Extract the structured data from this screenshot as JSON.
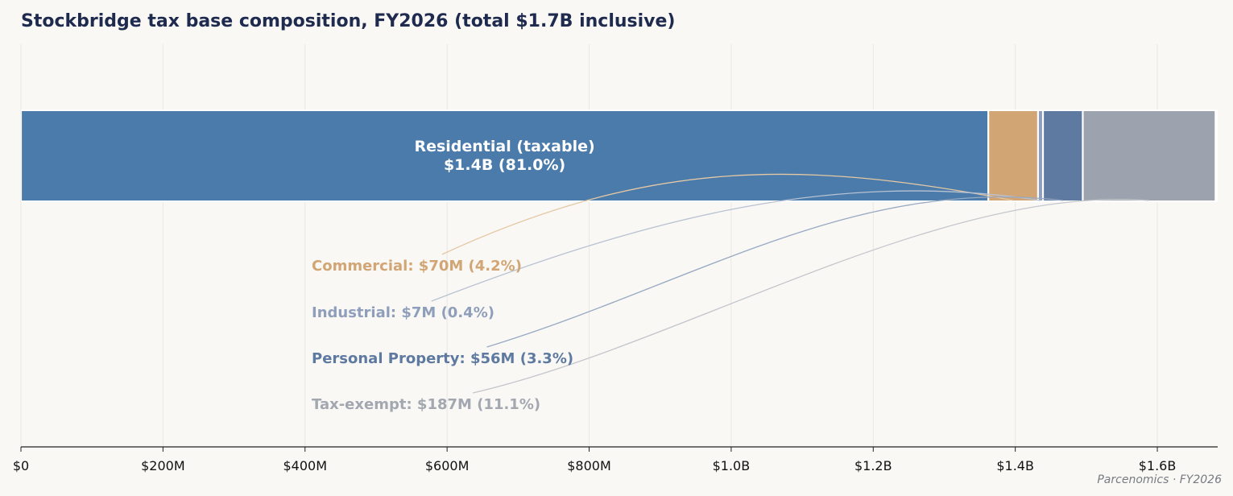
{
  "chart_data": {
    "type": "bar",
    "orientation": "horizontal-stacked",
    "title": "Stockbridge tax base composition, FY2026 (total $1.7B inclusive)",
    "xlim": [
      0,
      1685
    ],
    "x_unit": "$M",
    "x_ticks": [
      {
        "value": 0,
        "label": "$0"
      },
      {
        "value": 200,
        "label": "$200M"
      },
      {
        "value": 400,
        "label": "$400M"
      },
      {
        "value": 600,
        "label": "$600M"
      },
      {
        "value": 800,
        "label": "$800M"
      },
      {
        "value": 1000,
        "label": "$1.0B"
      },
      {
        "value": 1200,
        "label": "$1.2B"
      },
      {
        "value": 1400,
        "label": "$1.4B"
      },
      {
        "value": 1600,
        "label": "$1.6B"
      }
    ],
    "grid": true,
    "segments": [
      {
        "name": "Residential (taxable)",
        "value": 1362,
        "color": "#4a7baa",
        "label_line1": "Residential (taxable)",
        "label_line2": "$1.4B (81.0%)",
        "inside": true
      },
      {
        "name": "Commercial",
        "value": 70,
        "color": "#d2a574",
        "annotation": "Commercial: $70M (4.2%)",
        "annot_color": "#d2a574",
        "connector_color": "#e5c8a4"
      },
      {
        "name": "Industrial",
        "value": 7,
        "color": "#8f9fbb",
        "annotation": "Industrial: $7M (0.4%)",
        "annot_color": "#8f9fbb",
        "connector_color": "#b9c2d2"
      },
      {
        "name": "Personal Property",
        "value": 56,
        "color": "#5e7aa0",
        "annotation": "Personal Property: $56M (3.3%)",
        "annot_color": "#5e7aa0",
        "connector_color": "#98a9c2"
      },
      {
        "name": "Tax-exempt",
        "value": 187,
        "color": "#9ca3ae",
        "annotation": "Tax-exempt: $187M (11.1%)",
        "annot_color": "#a2a7b0",
        "connector_color": "#c3c6cb"
      }
    ]
  },
  "credit": "Parcenomics · FY2026"
}
